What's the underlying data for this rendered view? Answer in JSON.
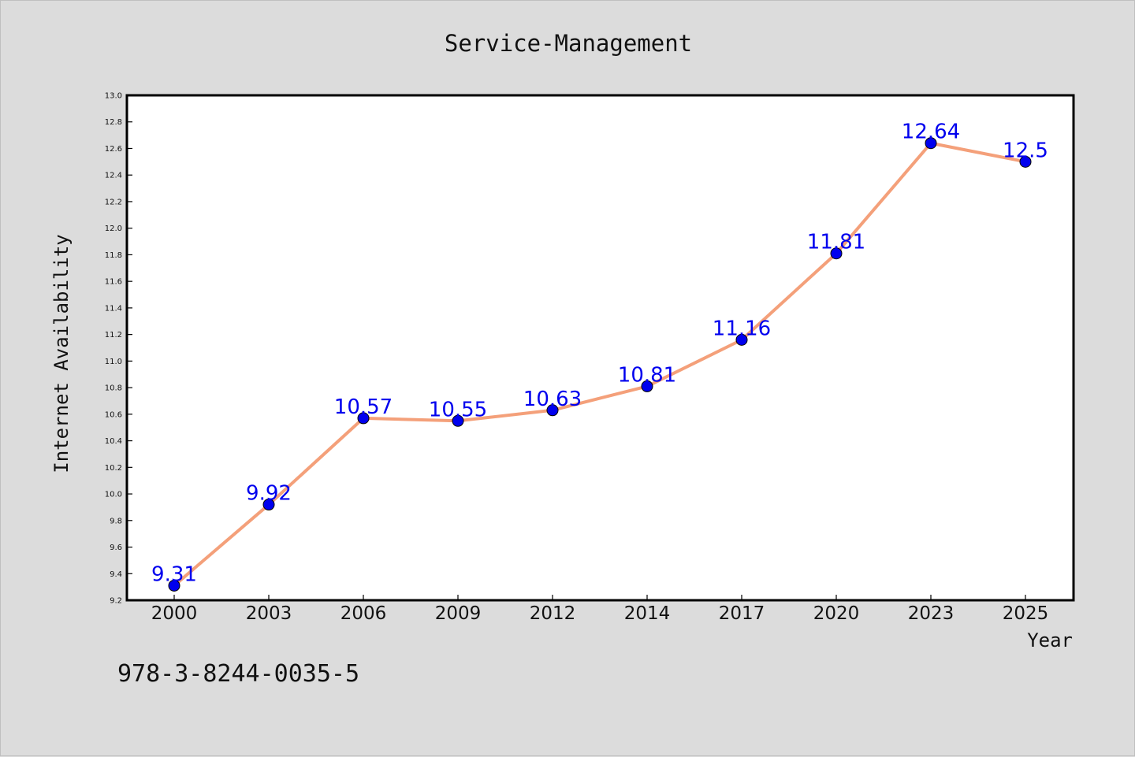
{
  "chart_data": {
    "type": "line",
    "title": "Service-Management",
    "xlabel": "Year",
    "ylabel": "Internet Availability",
    "categories": [
      "2000",
      "2003",
      "2006",
      "2009",
      "2012",
      "2014",
      "2017",
      "2020",
      "2023",
      "2025"
    ],
    "series": [
      {
        "values": [
          9.31,
          9.92,
          10.57,
          10.55,
          10.63,
          10.81,
          11.16,
          11.81,
          12.64,
          12.5
        ],
        "labels": [
          "9.31",
          "9.92",
          "10.57",
          "10.55",
          "10.63",
          "10.81",
          "11.16",
          "11.81",
          "12.64",
          "12.5"
        ],
        "line_color": "#f4a07a",
        "marker_color": "#0000ee"
      }
    ],
    "ylim": [
      9.2,
      13.0
    ],
    "yticks": [
      "9.2",
      "9.4",
      "9.6",
      "9.8",
      "10.0",
      "10.2",
      "10.4",
      "10.6",
      "10.8",
      "11.0",
      "11.2",
      "11.4",
      "11.6",
      "11.8",
      "12.0",
      "12.2",
      "12.4",
      "12.6",
      "12.8",
      "13.0"
    ],
    "grid": false,
    "legend": "none"
  },
  "footer": {
    "text": "978-3-8244-0035-5"
  }
}
